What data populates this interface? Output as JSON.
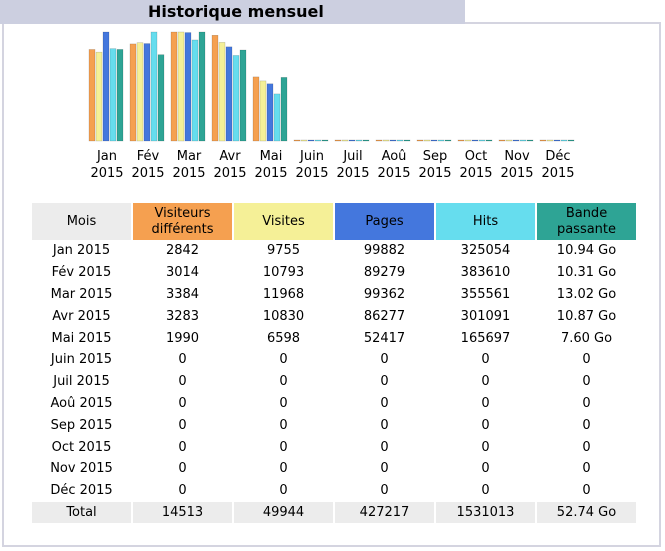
{
  "section": {
    "title": "Historique mensuel"
  },
  "colors": {
    "visiteurs": "#f5a050",
    "visites": "#f5f097",
    "pages": "#4477dd",
    "hits": "#66ddee",
    "bande": "#2ea495",
    "header_bg": "#cccfe0"
  },
  "table": {
    "headers": {
      "mois": "Mois",
      "visiteurs": "Visiteurs différents",
      "visites": "Visites",
      "pages": "Pages",
      "hits": "Hits",
      "bande": "Bande passante"
    },
    "rows": [
      {
        "mois": "Jan 2015",
        "visiteurs": "2842",
        "visites": "9755",
        "pages": "99882",
        "hits": "325054",
        "bande": "10.94 Go"
      },
      {
        "mois": "Fév 2015",
        "visiteurs": "3014",
        "visites": "10793",
        "pages": "89279",
        "hits": "383610",
        "bande": "10.31 Go"
      },
      {
        "mois": "Mar 2015",
        "visiteurs": "3384",
        "visites": "11968",
        "pages": "99362",
        "hits": "355561",
        "bande": "13.02 Go"
      },
      {
        "mois": "Avr 2015",
        "visiteurs": "3283",
        "visites": "10830",
        "pages": "86277",
        "hits": "301091",
        "bande": "10.87 Go"
      },
      {
        "mois": "Mai 2015",
        "visiteurs": "1990",
        "visites": "6598",
        "pages": "52417",
        "hits": "165697",
        "bande": "7.60 Go"
      },
      {
        "mois": "Juin 2015",
        "visiteurs": "0",
        "visites": "0",
        "pages": "0",
        "hits": "0",
        "bande": "0"
      },
      {
        "mois": "Juil 2015",
        "visiteurs": "0",
        "visites": "0",
        "pages": "0",
        "hits": "0",
        "bande": "0"
      },
      {
        "mois": "Aoû 2015",
        "visiteurs": "0",
        "visites": "0",
        "pages": "0",
        "hits": "0",
        "bande": "0"
      },
      {
        "mois": "Sep 2015",
        "visiteurs": "0",
        "visites": "0",
        "pages": "0",
        "hits": "0",
        "bande": "0"
      },
      {
        "mois": "Oct 2015",
        "visiteurs": "0",
        "visites": "0",
        "pages": "0",
        "hits": "0",
        "bande": "0"
      },
      {
        "mois": "Nov 2015",
        "visiteurs": "0",
        "visites": "0",
        "pages": "0",
        "hits": "0",
        "bande": "0"
      },
      {
        "mois": "Déc 2015",
        "visiteurs": "0",
        "visites": "0",
        "pages": "0",
        "hits": "0",
        "bande": "0"
      }
    ],
    "total": {
      "mois": "Total",
      "visiteurs": "14513",
      "visites": "49944",
      "pages": "427217",
      "hits": "1531013",
      "bande": "52.74 Go"
    }
  },
  "chart_data": {
    "type": "bar",
    "categories": [
      [
        "Jan",
        "2015"
      ],
      [
        "Fév",
        "2015"
      ],
      [
        "Mar",
        "2015"
      ],
      [
        "Avr",
        "2015"
      ],
      [
        "Mai",
        "2015"
      ],
      [
        "Juin",
        "2015"
      ],
      [
        "Juil",
        "2015"
      ],
      [
        "Aoû",
        "2015"
      ],
      [
        "Sep",
        "2015"
      ],
      [
        "Oct",
        "2015"
      ],
      [
        "Nov",
        "2015"
      ],
      [
        "Déc",
        "2015"
      ]
    ],
    "series": [
      {
        "key": "visiteurs",
        "values": [
          2842,
          3014,
          3384,
          3283,
          1990,
          0,
          0,
          0,
          0,
          0,
          0,
          0
        ]
      },
      {
        "key": "visites",
        "values": [
          9755,
          10793,
          11968,
          10830,
          6598,
          0,
          0,
          0,
          0,
          0,
          0,
          0
        ]
      },
      {
        "key": "pages",
        "values": [
          99882,
          89279,
          99362,
          86277,
          52417,
          0,
          0,
          0,
          0,
          0,
          0,
          0
        ]
      },
      {
        "key": "hits",
        "values": [
          325054,
          383610,
          355561,
          301091,
          165697,
          0,
          0,
          0,
          0,
          0,
          0,
          0
        ]
      },
      {
        "key": "bande",
        "values": [
          10.94,
          10.31,
          13.02,
          10.87,
          7.6,
          0,
          0,
          0,
          0,
          0,
          0,
          0
        ]
      }
    ]
  }
}
